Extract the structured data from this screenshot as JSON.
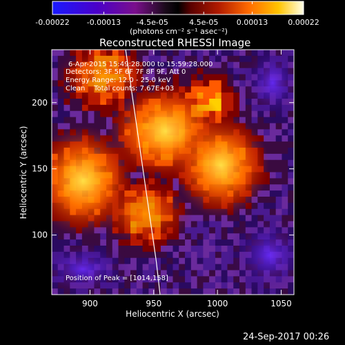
{
  "chart_data": {
    "type": "heatmap",
    "title": "Reconstructed RHESSI Image",
    "xlabel": "Heliocentric X (arcsec)",
    "ylabel": "Heliocentric Y (arcsec)",
    "xlim": [
      870,
      1060
    ],
    "ylim": [
      55,
      240
    ],
    "x_ticks": [
      900,
      950,
      1000,
      1050
    ],
    "y_ticks": [
      100,
      150,
      200
    ],
    "colorbar": {
      "ticks": [
        "-0.00022",
        "-0.00013",
        "-4.5e-05",
        "4.5e-05",
        "0.00013",
        "0.00022"
      ],
      "tick_values": [
        -0.00022,
        -0.00013,
        -4.5e-05,
        4.5e-05,
        0.00013,
        0.00022
      ],
      "range": [
        -0.00022,
        0.00022
      ],
      "unit_label": "(photons cm⁻² s⁻¹ asec⁻²)"
    },
    "annotations": {
      "time_range": "6-Apr-2015 15:49:28.000 to 15:59:28.000",
      "detectors": "Detectors: 3F 5F 6F 7F 8F 9F, Att 0",
      "energy": "Energy Range: 12.0 - 25.0 keV",
      "method_counts": "Clean    Total counts: 7.67E+03",
      "peak": "Position of Peak = [1014,158]"
    },
    "peak": {
      "x": 1014,
      "y": 158
    },
    "limb_curve": {
      "x": [
        928,
        934,
        940,
        946,
        952,
        955
      ],
      "y": [
        240,
        200,
        160,
        120,
        80,
        55
      ]
    },
    "grid": false,
    "footer_date": "24-Sep-2017 00:26"
  }
}
